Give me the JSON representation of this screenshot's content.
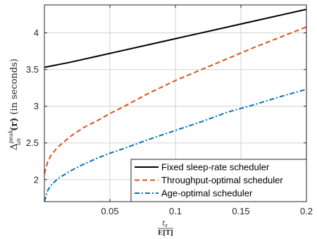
{
  "chart_data": {
    "type": "line",
    "title": "",
    "xlabel": {
      "numerator": "t",
      "numerator_sub": "s",
      "denominator": "E[T]"
    },
    "ylabel": {
      "symbol": "Δ",
      "superscript": "peak",
      "subscript": "un",
      "argument": "(r)",
      "suffix": "(in seconds)"
    },
    "xlim": [
      0,
      0.2
    ],
    "ylim": [
      1.7,
      4.38
    ],
    "xticks": [
      0.05,
      0.1,
      0.15,
      0.2
    ],
    "xtick_labels": [
      "0.05",
      "0.1",
      "0.15",
      "0.2"
    ],
    "yticks": [
      2,
      2.5,
      3,
      3.5,
      4
    ],
    "ytick_labels": [
      "2",
      "2.5",
      "3",
      "3.5",
      "4"
    ],
    "grid": true,
    "legend_position": "bottom-right",
    "series": [
      {
        "name": "Fixed sleep-rate scheduler",
        "style": "solid",
        "color": "#000000",
        "x": [
          0,
          0.02,
          0.04,
          0.06,
          0.08,
          0.1,
          0.12,
          0.14,
          0.16,
          0.18,
          0.2
        ],
        "y": [
          3.53,
          3.6,
          3.68,
          3.76,
          3.84,
          3.92,
          4.0,
          4.08,
          4.16,
          4.24,
          4.32
        ]
      },
      {
        "name": "Throughput-optimal scheduler",
        "style": "dashed",
        "color": "#D95319",
        "x": [
          0,
          0.0025,
          0.005,
          0.01,
          0.02,
          0.03,
          0.04,
          0.05,
          0.06,
          0.08,
          0.1,
          0.12,
          0.14,
          0.16,
          0.18,
          0.2
        ],
        "y": [
          2.08,
          2.24,
          2.33,
          2.44,
          2.59,
          2.71,
          2.8,
          2.9,
          2.99,
          3.18,
          3.35,
          3.5,
          3.65,
          3.8,
          3.94,
          4.08
        ]
      },
      {
        "name": "Age-optimal scheduler",
        "style": "dashdot",
        "color": "#0072BD",
        "x": [
          0,
          0.0025,
          0.005,
          0.01,
          0.02,
          0.03,
          0.04,
          0.05,
          0.06,
          0.08,
          0.1,
          0.12,
          0.14,
          0.16,
          0.18,
          0.2
        ],
        "y": [
          1.7,
          1.85,
          1.92,
          2.01,
          2.12,
          2.21,
          2.29,
          2.36,
          2.42,
          2.55,
          2.67,
          2.79,
          2.92,
          3.02,
          3.13,
          3.23
        ]
      }
    ]
  }
}
